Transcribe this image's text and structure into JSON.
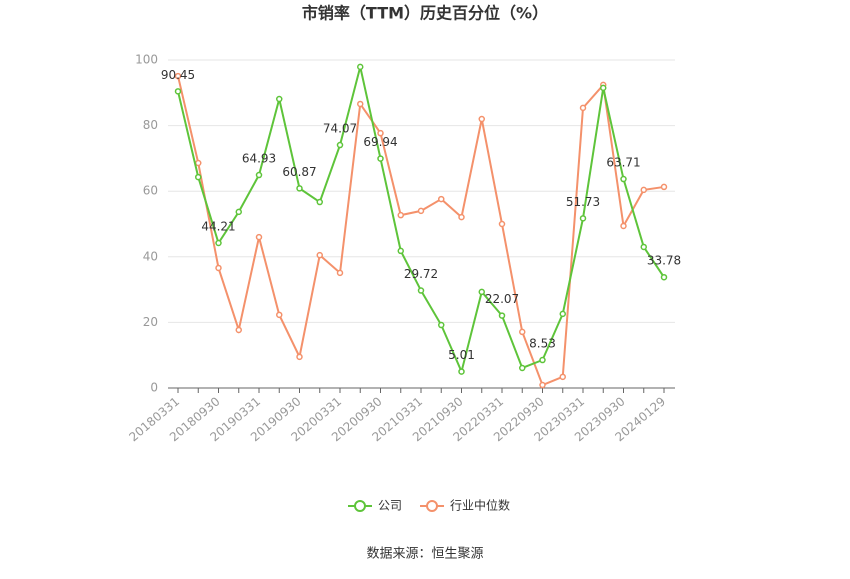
{
  "chart_data": {
    "type": "line",
    "title": "市销率（TTM）历史百分位（%）",
    "categories": [
      "20180331",
      null,
      "20180930",
      null,
      "20190331",
      null,
      "20190930",
      null,
      "20200331",
      null,
      "20200930",
      null,
      "20210331",
      null,
      "20210930",
      null,
      "20220331",
      null,
      "20220930",
      null,
      "20230331",
      null,
      "20230930",
      null,
      "20240129"
    ],
    "series": [
      {
        "name": "公司",
        "color": "#5ec43a",
        "values": [
          90.45,
          64.3,
          44.21,
          53.7,
          64.93,
          88.1,
          60.87,
          56.7,
          74.07,
          97.9,
          69.94,
          41.8,
          29.72,
          19.2,
          5.01,
          29.3,
          22.07,
          6.1,
          8.53,
          22.6,
          51.73,
          91.5,
          63.71,
          43.0,
          33.78
        ]
      },
      {
        "name": "行业中位数",
        "color": "#f4916b",
        "values": [
          95.1,
          68.6,
          36.6,
          17.7,
          46.0,
          22.3,
          9.5,
          40.5,
          35.1,
          86.6,
          77.7,
          52.7,
          54.0,
          57.6,
          52.1,
          82.0,
          50.0,
          17.1,
          0.9,
          3.4,
          85.4,
          92.4,
          49.4,
          60.4,
          61.3
        ]
      }
    ],
    "ylim": [
      0,
      100
    ],
    "yticks": [
      0,
      20,
      40,
      60,
      80,
      100
    ],
    "grid": true,
    "source": "数据来源：恒生聚源"
  }
}
